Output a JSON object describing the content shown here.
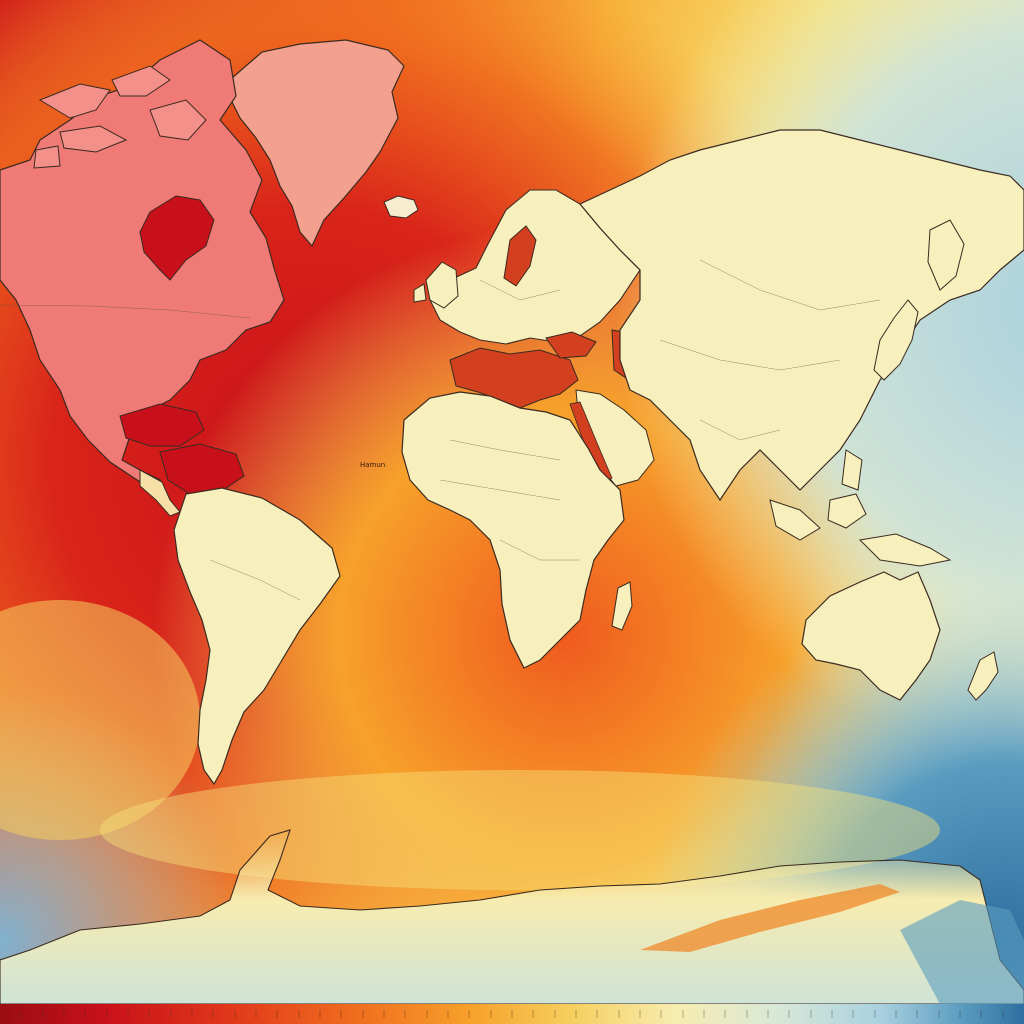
{
  "map": {
    "type": "world-heat-map",
    "projection": "equirectangular-like",
    "ocean_label": "Hamun",
    "colors": {
      "hot": "#c8101a",
      "warm": "#ef5a1e",
      "orange": "#f7a12a",
      "yellow": "#f6e27a",
      "pale": "#f8f0c0",
      "cool": "#a9d0df",
      "cold": "#4a8bb3",
      "land_north_america": "#f07a76",
      "land_greenland": "#f4a08e",
      "land_pale": "#f7f0bd",
      "sea_inland": "#d2401f",
      "outline": "#3a2a20"
    },
    "colorbar": {
      "stops": [
        "#9b0d12",
        "#c8101a",
        "#e0361a",
        "#ef6a1e",
        "#f7a12a",
        "#f6d060",
        "#f7ecb0",
        "#d8e8d8",
        "#a9d0df",
        "#5a9cc0",
        "#2e6fa0"
      ]
    }
  }
}
